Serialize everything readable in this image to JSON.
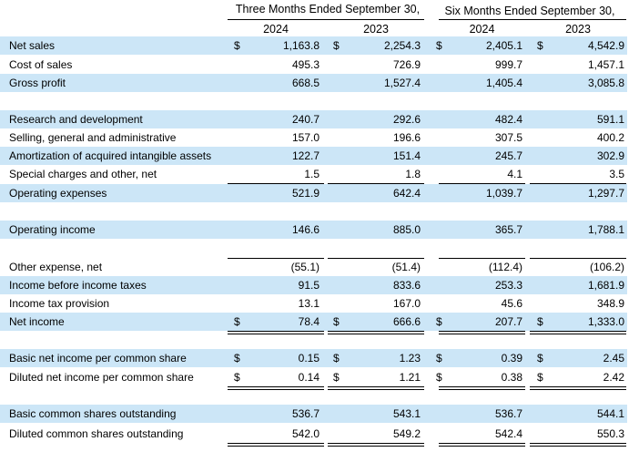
{
  "headers": {
    "three_months": "Three Months Ended September 30,",
    "six_months": "Six Months Ended September 30,",
    "years": [
      "2024",
      "2023",
      "2024",
      "2023"
    ]
  },
  "currency_symbol": "$",
  "rows": [
    {
      "label": "Net sales",
      "values": [
        "1,163.8",
        "2,254.3",
        "2,405.1",
        "4,542.9"
      ]
    },
    {
      "label": "Cost of sales",
      "values": [
        "495.3",
        "726.9",
        "999.7",
        "1,457.1"
      ]
    },
    {
      "label": "Gross profit",
      "values": [
        "668.5",
        "1,527.4",
        "1,405.4",
        "3,085.8"
      ]
    },
    {
      "label": "Research and development",
      "values": [
        "240.7",
        "292.6",
        "482.4",
        "591.1"
      ]
    },
    {
      "label": "Selling, general and administrative",
      "values": [
        "157.0",
        "196.6",
        "307.5",
        "400.2"
      ]
    },
    {
      "label": "Amortization of acquired intangible assets",
      "values": [
        "122.7",
        "151.4",
        "245.7",
        "302.9"
      ]
    },
    {
      "label": "Special charges and other, net",
      "values": [
        "1.5",
        "1.8",
        "4.1",
        "3.5"
      ]
    },
    {
      "label": "Operating expenses",
      "values": [
        "521.9",
        "642.4",
        "1,039.7",
        "1,297.7"
      ]
    },
    {
      "label": "Operating income",
      "values": [
        "146.6",
        "885.0",
        "365.7",
        "1,788.1"
      ]
    },
    {
      "label": "Other expense, net",
      "values": [
        "(55.1)",
        "(51.4)",
        "(112.4)",
        "(106.2)"
      ]
    },
    {
      "label": "Income before income taxes",
      "values": [
        "91.5",
        "833.6",
        "253.3",
        "1,681.9"
      ]
    },
    {
      "label": "Income tax provision",
      "values": [
        "13.1",
        "167.0",
        "45.6",
        "348.9"
      ]
    },
    {
      "label": "Net income",
      "values": [
        "78.4",
        "666.6",
        "207.7",
        "1,333.0"
      ]
    },
    {
      "label": "Basic net income per common share",
      "values": [
        "0.15",
        "1.23",
        "0.39",
        "2.45"
      ]
    },
    {
      "label": "Diluted net income per common share",
      "values": [
        "0.14",
        "1.21",
        "0.38",
        "2.42"
      ]
    },
    {
      "label": "Basic common shares outstanding",
      "values": [
        "536.7",
        "543.1",
        "536.7",
        "544.1"
      ]
    },
    {
      "label": "Diluted common shares outstanding",
      "values": [
        "542.0",
        "549.2",
        "542.4",
        "550.3"
      ]
    }
  ]
}
